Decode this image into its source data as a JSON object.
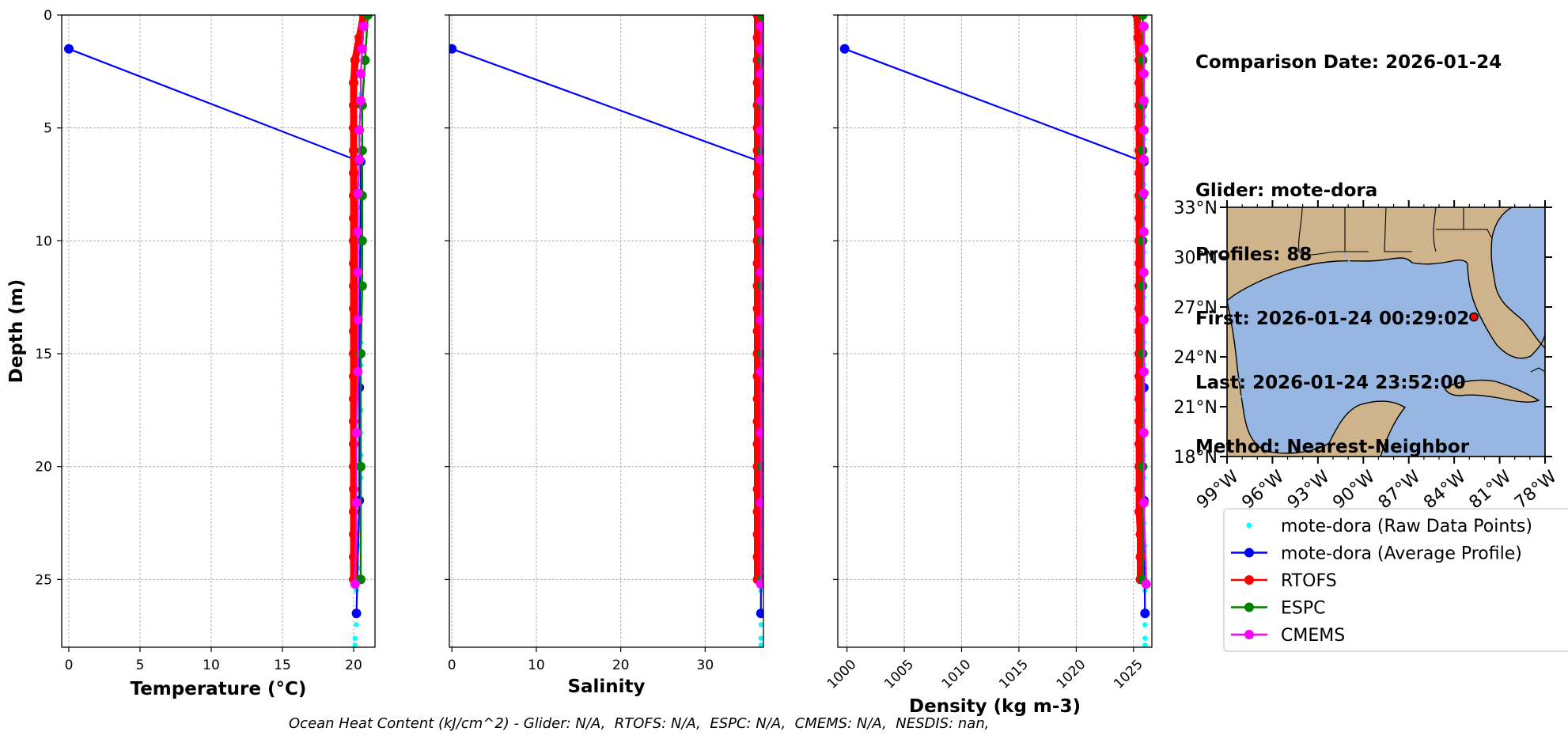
{
  "info": {
    "comparison_date": "Comparison Date: 2026-01-24",
    "glider": "Glider: mote-dora",
    "profiles": "Profiles: 88",
    "first": "First: 2026-01-24 00:29:02",
    "last": "Last: 2026-01-24 23:52:00",
    "method": "Method: Nearest-Neighbor"
  },
  "footer": "Ocean Heat Content (kJ/cm^2) - Glider: N/A,  RTOFS: N/A,  ESPC: N/A,  CMEMS: N/A,  NESDIS: nan,",
  "colors": {
    "raw": "#00ffff",
    "avg": "#0000ff",
    "rtofs": "#ff0000",
    "espc": "#008000",
    "cmems": "#ff00ff",
    "ocean": "#97b6e1",
    "land": "#cfb38a",
    "marker": "#ff0000"
  },
  "chart_data": [
    {
      "type": "line",
      "xlabel": "Temperature (°C)",
      "ylabel": "Depth (m)",
      "xlim": [
        -0.5,
        21.5
      ],
      "ylim": [
        28,
        0
      ],
      "xticks": [
        0,
        5,
        10,
        15,
        20
      ],
      "yticks": [
        0,
        5,
        10,
        15,
        20,
        25
      ],
      "grid": true,
      "series": [
        {
          "name": "mote-dora (Raw Data Points)",
          "y": [
            0.5,
            1.5,
            2.5,
            3.5,
            4.5,
            5.5,
            6.5,
            7.5,
            8.5,
            9.5,
            10.5,
            11.5,
            12.5,
            13.5,
            14.5,
            15.5,
            16.5,
            17.5,
            18.5,
            19.5,
            20.5,
            21.5,
            22.5,
            23.5,
            24.5,
            25.5,
            26.5,
            27.0,
            27.6,
            27.9
          ],
          "x": [
            20.6,
            20.5,
            20.5,
            20.5,
            20.5,
            20.5,
            20.5,
            20.5,
            20.5,
            20.5,
            20.5,
            20.5,
            20.5,
            20.5,
            20.5,
            20.5,
            20.5,
            20.5,
            20.5,
            20.5,
            20.5,
            20.4,
            20.4,
            20.4,
            20.3,
            20.2,
            20.2,
            20.2,
            20.1,
            20.1
          ]
        },
        {
          "name": "mote-dora (Average Profile)",
          "y": [
            1.5,
            6.5,
            16.5,
            21.5,
            26.5
          ],
          "x": [
            0.0,
            20.5,
            20.4,
            20.4,
            20.2
          ]
        },
        {
          "name": "RTOFS",
          "y": [
            0,
            1,
            2,
            3,
            4,
            5,
            6,
            7,
            8,
            9,
            10,
            11,
            12,
            13,
            14,
            15,
            16,
            17,
            18,
            19,
            20,
            21,
            22,
            23,
            24,
            25
          ],
          "x": [
            20.7,
            20.4,
            20.1,
            20.0,
            20.0,
            20.0,
            20.0,
            20.0,
            20.0,
            20.0,
            20.0,
            20.0,
            20.0,
            20.0,
            20.0,
            20.0,
            20.0,
            20.0,
            20.0,
            20.0,
            20.0,
            20.0,
            20.0,
            20.0,
            20.0,
            20.0
          ]
        },
        {
          "name": "ESPC",
          "y": [
            0,
            2,
            4,
            6,
            8,
            10,
            12,
            15,
            20,
            25
          ],
          "x": [
            21.0,
            20.8,
            20.6,
            20.6,
            20.6,
            20.6,
            20.6,
            20.5,
            20.5,
            20.5
          ]
        },
        {
          "name": "CMEMS",
          "y": [
            0.5,
            1.5,
            2.6,
            3.8,
            5.1,
            6.4,
            7.9,
            9.6,
            11.4,
            13.5,
            15.8,
            18.5,
            21.6,
            25.2
          ],
          "x": [
            20.7,
            20.6,
            20.5,
            20.5,
            20.4,
            20.4,
            20.3,
            20.3,
            20.3,
            20.3,
            20.3,
            20.2,
            20.2,
            20.1
          ]
        }
      ]
    },
    {
      "type": "line",
      "xlabel": "Salinity",
      "ylabel": "",
      "xlim": [
        -0.3,
        36.9
      ],
      "ylim": [
        28,
        0
      ],
      "xticks": [
        0,
        10,
        20,
        30
      ],
      "yticks": [
        0,
        5,
        10,
        15,
        20,
        25
      ],
      "grid": true,
      "series": [
        {
          "name": "mote-dora (Raw Data Points)",
          "y": [
            0.5,
            1.5,
            2.5,
            3.5,
            4.5,
            5.5,
            6.5,
            7.5,
            8.5,
            9.5,
            10.5,
            11.5,
            12.5,
            13.5,
            14.5,
            15.5,
            16.5,
            17.5,
            18.5,
            19.5,
            20.5,
            21.5,
            22.5,
            23.5,
            24.5,
            25.5,
            26.5,
            27.0,
            27.6,
            27.9
          ],
          "x": [
            36.6,
            36.6,
            36.6,
            36.6,
            36.6,
            36.6,
            36.6,
            36.6,
            36.6,
            36.6,
            36.6,
            36.6,
            36.6,
            36.6,
            36.6,
            36.6,
            36.6,
            36.6,
            36.6,
            36.6,
            36.6,
            36.6,
            36.6,
            36.6,
            36.6,
            36.6,
            36.6,
            36.6,
            36.6,
            36.6
          ]
        },
        {
          "name": "mote-dora (Average Profile)",
          "y": [
            1.5,
            6.5,
            16.5,
            21.5,
            26.5
          ],
          "x": [
            0.0,
            36.6,
            36.6,
            36.6,
            36.6
          ]
        },
        {
          "name": "RTOFS",
          "y": [
            0,
            1,
            2,
            3,
            4,
            5,
            6,
            7,
            8,
            9,
            10,
            11,
            12,
            13,
            14,
            15,
            16,
            17,
            18,
            19,
            20,
            21,
            22,
            23,
            24,
            25
          ],
          "x": [
            36.2,
            36.2,
            36.2,
            36.2,
            36.2,
            36.2,
            36.2,
            36.2,
            36.2,
            36.2,
            36.2,
            36.2,
            36.2,
            36.2,
            36.2,
            36.2,
            36.2,
            36.2,
            36.2,
            36.2,
            36.2,
            36.2,
            36.2,
            36.2,
            36.2,
            36.2
          ]
        },
        {
          "name": "ESPC",
          "y": [
            0,
            2,
            4,
            6,
            8,
            10,
            12,
            15,
            20,
            25
          ],
          "x": [
            36.7,
            36.7,
            36.7,
            36.7,
            36.7,
            36.7,
            36.7,
            36.7,
            36.7,
            36.7
          ]
        },
        {
          "name": "CMEMS",
          "y": [
            0.5,
            1.5,
            2.6,
            3.8,
            5.1,
            6.4,
            7.9,
            9.6,
            11.4,
            13.5,
            15.8,
            18.5,
            21.6,
            25.2
          ],
          "x": [
            36.6,
            36.6,
            36.6,
            36.6,
            36.6,
            36.6,
            36.6,
            36.6,
            36.6,
            36.6,
            36.6,
            36.6,
            36.6,
            36.6
          ]
        }
      ]
    },
    {
      "type": "line",
      "xlabel": "Density (kg m-3)",
      "ylabel": "",
      "xlim": [
        999.2,
        1026.6
      ],
      "ylim": [
        28,
        0
      ],
      "xticks": [
        1000,
        1005,
        1010,
        1015,
        1020,
        1025
      ],
      "yticks": [
        0,
        5,
        10,
        15,
        20,
        25
      ],
      "grid": true,
      "series": [
        {
          "name": "mote-dora (Raw Data Points)",
          "y": [
            0.5,
            1.5,
            2.5,
            3.5,
            4.5,
            5.5,
            6.5,
            7.5,
            8.5,
            9.5,
            10.5,
            11.5,
            12.5,
            13.5,
            14.5,
            15.5,
            16.5,
            17.5,
            18.5,
            19.5,
            20.5,
            21.5,
            22.5,
            23.5,
            24.5,
            25.5,
            26.5,
            27.0,
            27.6,
            27.9
          ],
          "x": [
            1025.7,
            1025.8,
            1025.8,
            1025.8,
            1025.9,
            1025.9,
            1025.9,
            1025.9,
            1025.9,
            1025.9,
            1025.9,
            1025.9,
            1025.9,
            1025.9,
            1025.9,
            1025.9,
            1025.9,
            1025.9,
            1025.9,
            1025.9,
            1025.9,
            1025.9,
            1025.9,
            1026.0,
            1026.0,
            1026.0,
            1026.0,
            1026.0,
            1026.0,
            1026.0
          ]
        },
        {
          "name": "mote-dora (Average Profile)",
          "y": [
            1.5,
            6.5,
            16.5,
            21.5,
            26.5
          ],
          "x": [
            999.8,
            1025.9,
            1025.9,
            1025.9,
            1026.0
          ]
        },
        {
          "name": "RTOFS",
          "y": [
            0,
            1,
            2,
            3,
            4,
            5,
            6,
            7,
            8,
            9,
            10,
            11,
            12,
            13,
            14,
            15,
            16,
            17,
            18,
            19,
            20,
            21,
            22,
            23,
            24,
            25
          ],
          "x": [
            1025.3,
            1025.4,
            1025.5,
            1025.5,
            1025.5,
            1025.5,
            1025.5,
            1025.5,
            1025.5,
            1025.5,
            1025.5,
            1025.5,
            1025.5,
            1025.5,
            1025.5,
            1025.5,
            1025.5,
            1025.5,
            1025.5,
            1025.5,
            1025.5,
            1025.5,
            1025.5,
            1025.6,
            1025.6,
            1025.6
          ]
        },
        {
          "name": "ESPC",
          "y": [
            0,
            2,
            4,
            6,
            8,
            10,
            12,
            15,
            20,
            25
          ],
          "x": [
            1025.8,
            1025.8,
            1025.8,
            1025.8,
            1025.8,
            1025.8,
            1025.8,
            1025.8,
            1025.8,
            1025.8
          ]
        },
        {
          "name": "CMEMS",
          "y": [
            0.5,
            1.5,
            2.6,
            3.8,
            5.1,
            6.4,
            7.9,
            9.6,
            11.4,
            13.5,
            15.8,
            18.5,
            21.6,
            25.2
          ],
          "x": [
            1025.9,
            1025.9,
            1025.9,
            1025.9,
            1025.9,
            1025.9,
            1025.9,
            1025.9,
            1025.9,
            1025.9,
            1025.9,
            1025.9,
            1025.9,
            1026.1
          ]
        }
      ]
    },
    {
      "type": "map",
      "lon_range": [
        -99,
        -78
      ],
      "lat_range": [
        18,
        33
      ],
      "lon_ticks": [
        "99°W",
        "96°W",
        "93°W",
        "90°W",
        "87°W",
        "84°W",
        "81°W",
        "78°W"
      ],
      "lat_ticks": [
        "33°N",
        "30°N",
        "27°N",
        "24°N",
        "21°N",
        "18°N"
      ],
      "glider_position": {
        "lon": -82.7,
        "lat": 26.4
      }
    }
  ],
  "legend": {
    "items": [
      {
        "label": "mote-dora (Raw Data Points)",
        "series": "raw"
      },
      {
        "label": "mote-dora (Average Profile)",
        "series": "avg"
      },
      {
        "label": "RTOFS",
        "series": "rtofs"
      },
      {
        "label": "ESPC",
        "series": "espc"
      },
      {
        "label": "CMEMS",
        "series": "cmems"
      }
    ]
  }
}
